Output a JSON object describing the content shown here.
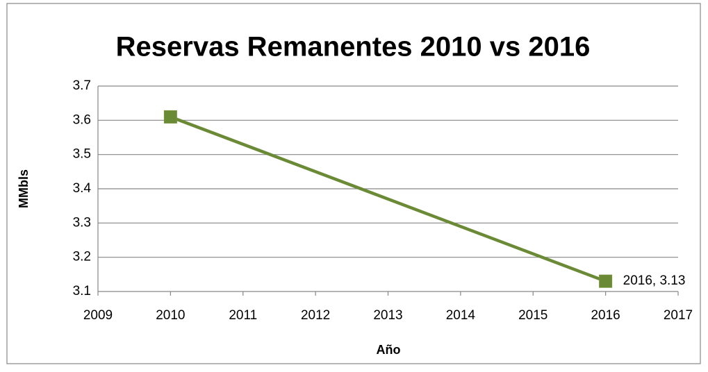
{
  "chart_data": {
    "type": "line",
    "title": "Reservas Remanentes 2010 vs 2016",
    "x_label": "Año",
    "y_label": "MMbls",
    "x": [
      2010,
      2016
    ],
    "series": [
      {
        "color": "#6b8a36",
        "values": [
          3.61,
          3.13
        ],
        "value_labels": [
          null,
          "2016, 3.13"
        ]
      }
    ],
    "xlim": [
      2009,
      2017
    ],
    "xticks": [
      2009,
      2010,
      2011,
      2012,
      2013,
      2014,
      2015,
      2016,
      2017
    ],
    "ylim": [
      3.1,
      3.7
    ],
    "yticks": [
      3.1,
      3.2,
      3.3,
      3.4,
      3.5,
      3.6,
      3.7
    ],
    "grid": true
  }
}
